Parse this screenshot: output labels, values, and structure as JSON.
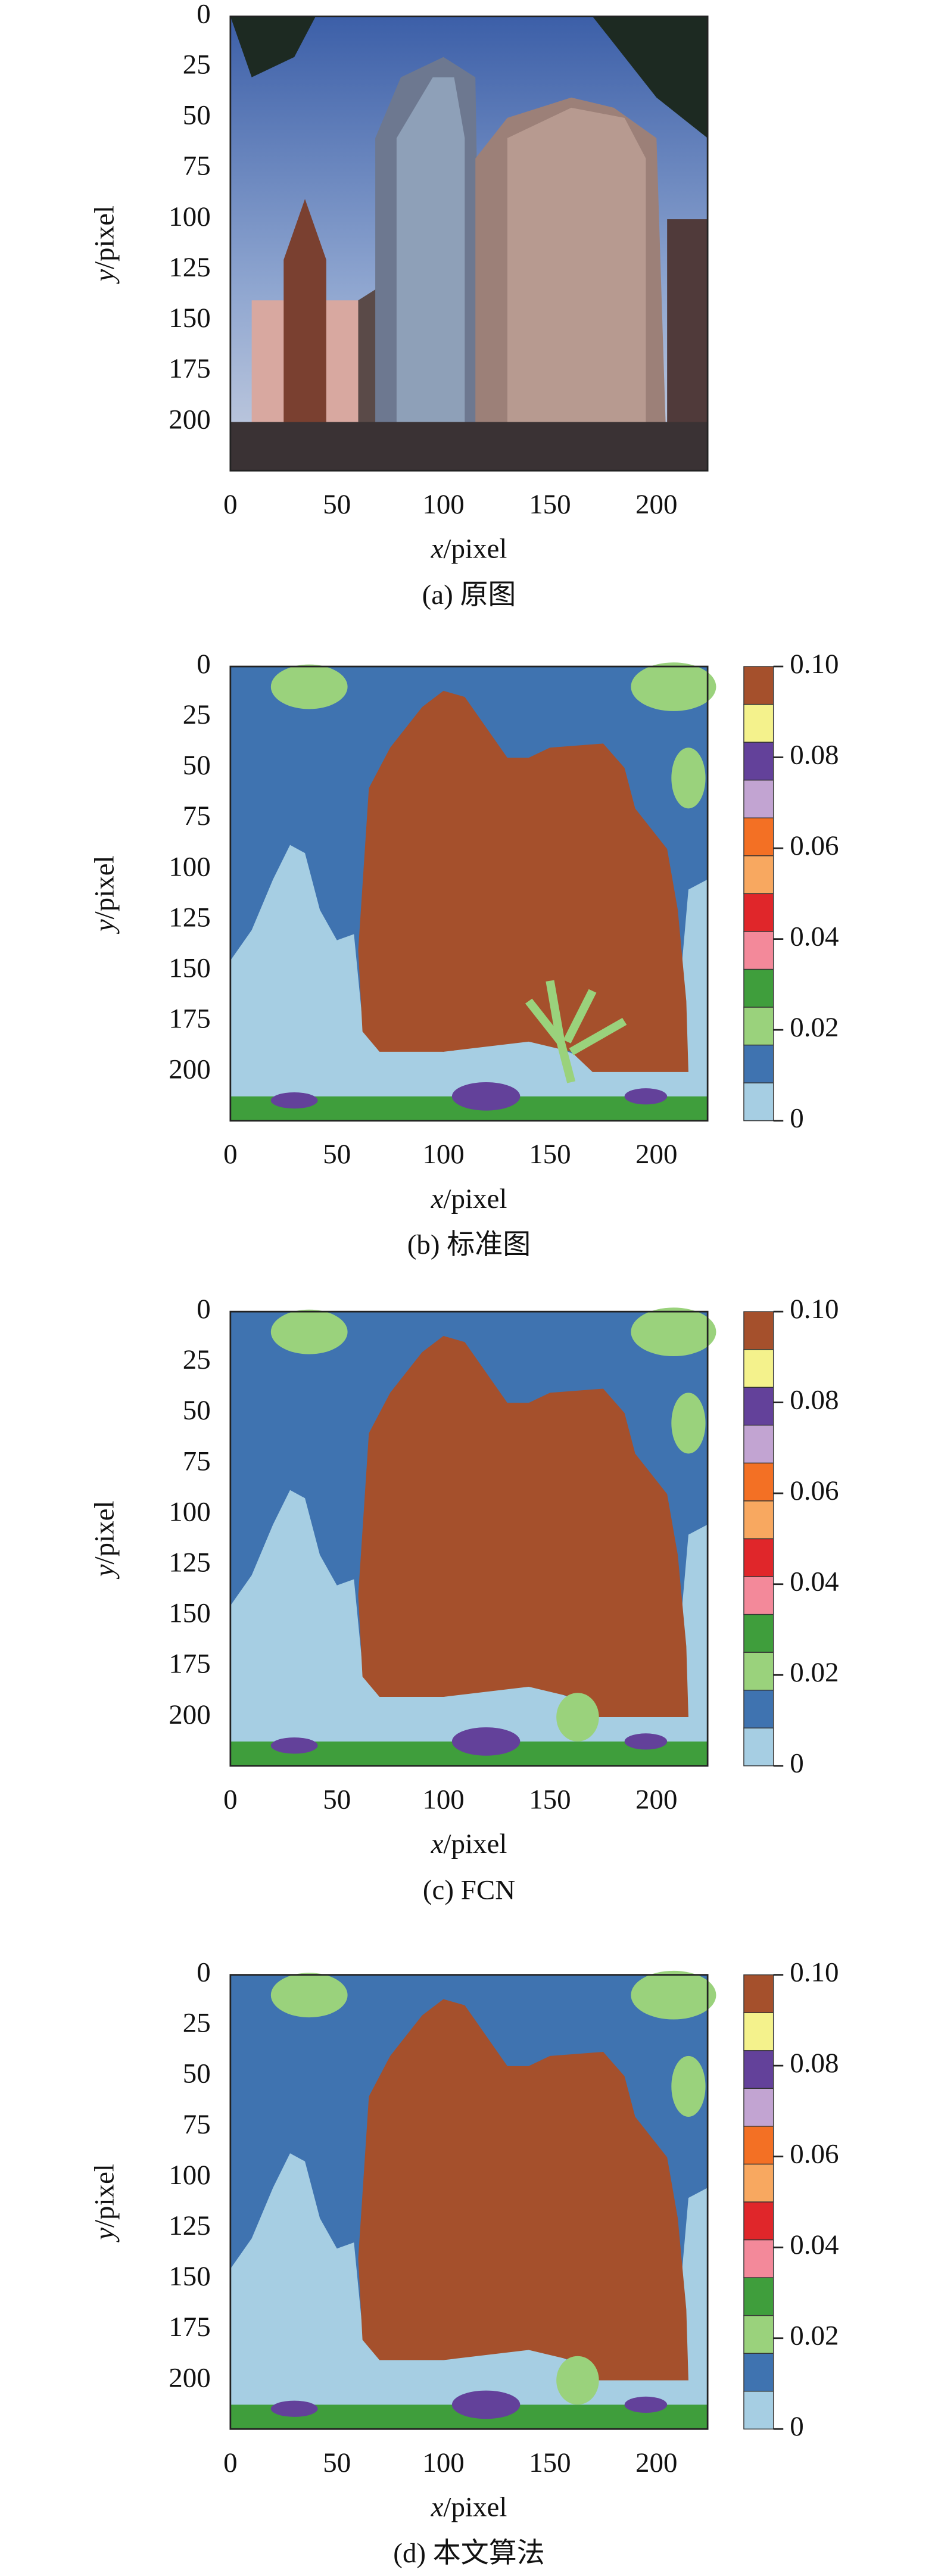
{
  "chart_data": [
    {
      "type": "image",
      "caption": "(a) 原图",
      "x_label": {
        "var": "x",
        "unit": "/pixel"
      },
      "y_label": {
        "var": "y",
        "unit": "/pixel"
      },
      "xlim": [
        0,
        224
      ],
      "ylim": [
        0,
        224
      ],
      "xticks": [
        0,
        50,
        100,
        150,
        200
      ],
      "yticks": [
        0,
        25,
        50,
        75,
        100,
        125,
        150,
        175,
        200
      ]
    },
    {
      "type": "segmentation",
      "caption": "(b) 标准图",
      "x_label": {
        "var": "x",
        "unit": "/pixel"
      },
      "y_label": {
        "var": "y",
        "unit": "/pixel"
      },
      "xlim": [
        0,
        224
      ],
      "ylim": [
        0,
        224
      ],
      "xticks": [
        0,
        50,
        100,
        150,
        200
      ],
      "yticks": [
        0,
        25,
        50,
        75,
        100,
        125,
        150,
        175,
        200
      ],
      "colorbar": {
        "lim": [
          0,
          0.1
        ],
        "ticks": [
          0,
          0.02,
          0.04,
          0.06,
          0.08,
          {
            "value": 0.1,
            "label": "0.10"
          }
        ],
        "colors": [
          "#a6cee3",
          "#3f73b0",
          "#9ad27c",
          "#3f9e3c",
          "#f3899a",
          "#e0262a",
          "#f8a860",
          "#f37024",
          "#c2a4d2",
          "#63419a",
          "#f4f28c",
          "#a5502c"
        ]
      }
    },
    {
      "type": "segmentation",
      "caption": "(c) FCN",
      "x_label": {
        "var": "x",
        "unit": "/pixel"
      },
      "y_label": {
        "var": "y",
        "unit": "/pixel"
      },
      "xlim": [
        0,
        224
      ],
      "ylim": [
        0,
        224
      ],
      "xticks": [
        0,
        50,
        100,
        150,
        200
      ],
      "yticks": [
        0,
        25,
        50,
        75,
        100,
        125,
        150,
        175,
        200
      ],
      "colorbar": {
        "lim": [
          0,
          0.1
        ],
        "ticks": [
          0,
          0.02,
          0.04,
          0.06,
          0.08,
          {
            "value": 0.1,
            "label": "0.10"
          }
        ],
        "colors": [
          "#a6cee3",
          "#3f73b0",
          "#9ad27c",
          "#3f9e3c",
          "#f3899a",
          "#e0262a",
          "#f8a860",
          "#f37024",
          "#c2a4d2",
          "#63419a",
          "#f4f28c",
          "#a5502c"
        ]
      }
    },
    {
      "type": "segmentation",
      "caption": "(d) 本文算法",
      "x_label": {
        "var": "x",
        "unit": "/pixel"
      },
      "y_label": {
        "var": "y",
        "unit": "/pixel"
      },
      "xlim": [
        0,
        224
      ],
      "ylim": [
        0,
        224
      ],
      "xticks": [
        0,
        50,
        100,
        150,
        200
      ],
      "yticks": [
        0,
        25,
        50,
        75,
        100,
        125,
        150,
        175,
        200
      ],
      "colorbar": {
        "lim": [
          0,
          0.1
        ],
        "ticks": [
          0,
          0.02,
          0.04,
          0.06,
          0.08,
          {
            "value": 0.1,
            "label": "0.10"
          }
        ],
        "colors": [
          "#a6cee3",
          "#3f73b0",
          "#9ad27c",
          "#3f9e3c",
          "#f3899a",
          "#e0262a",
          "#f8a860",
          "#f37024",
          "#c2a4d2",
          "#63419a",
          "#f4f28c",
          "#a5502c"
        ]
      }
    }
  ]
}
